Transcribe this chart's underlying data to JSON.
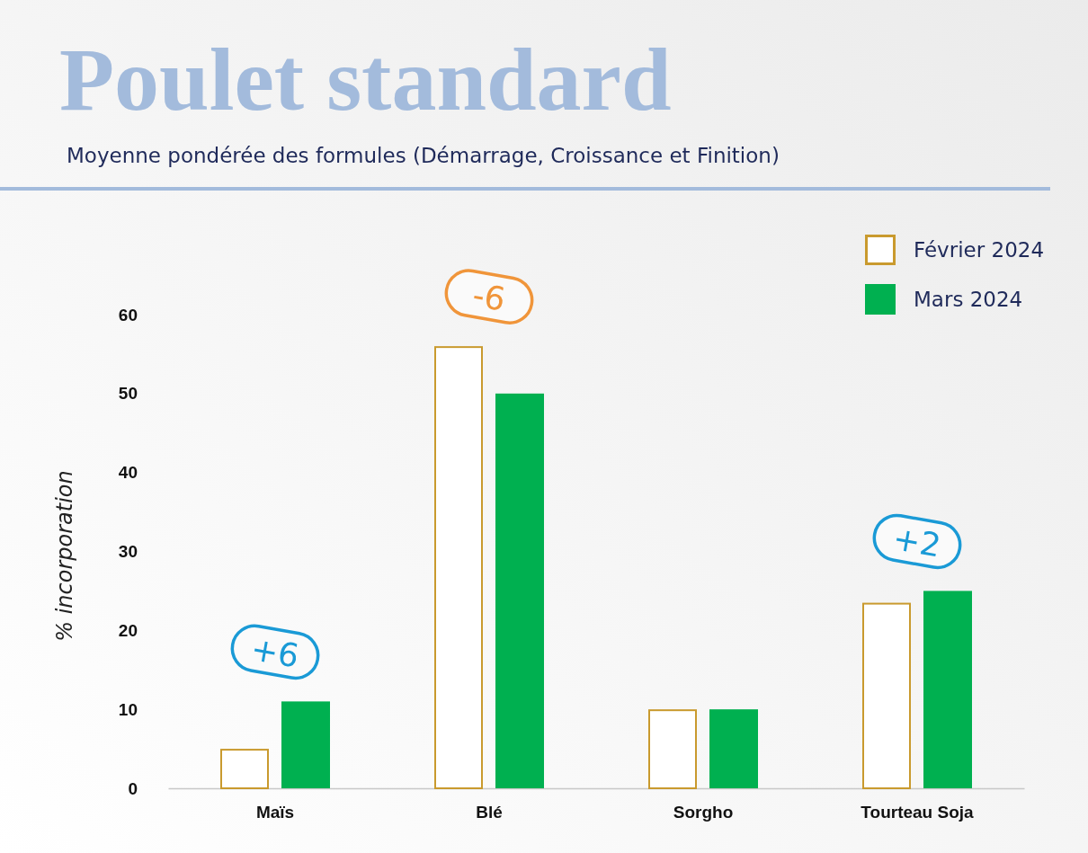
{
  "chart_data": {
    "type": "bar",
    "title": "Poulet standard",
    "subtitle": "Moyenne pondérée des formules (Démarrage, Croissance et Finition)",
    "ylabel": "% incorporation",
    "categories": [
      "Maïs",
      "Blé",
      "Sorgho",
      "Tourteau Soja"
    ],
    "series": [
      {
        "name": "Février 2024",
        "color": "#c99a2e",
        "values": [
          5,
          56,
          10,
          23.5
        ]
      },
      {
        "name": "Mars 2024",
        "color": "#00b050",
        "values": [
          11,
          50,
          10,
          25
        ]
      }
    ],
    "ylim": [
      0,
      60
    ],
    "yticks": [
      0,
      10,
      20,
      30,
      40,
      50,
      60
    ],
    "grid": false,
    "legend": "top right",
    "annotations": [
      "+6",
      "-6",
      "+2"
    ]
  }
}
